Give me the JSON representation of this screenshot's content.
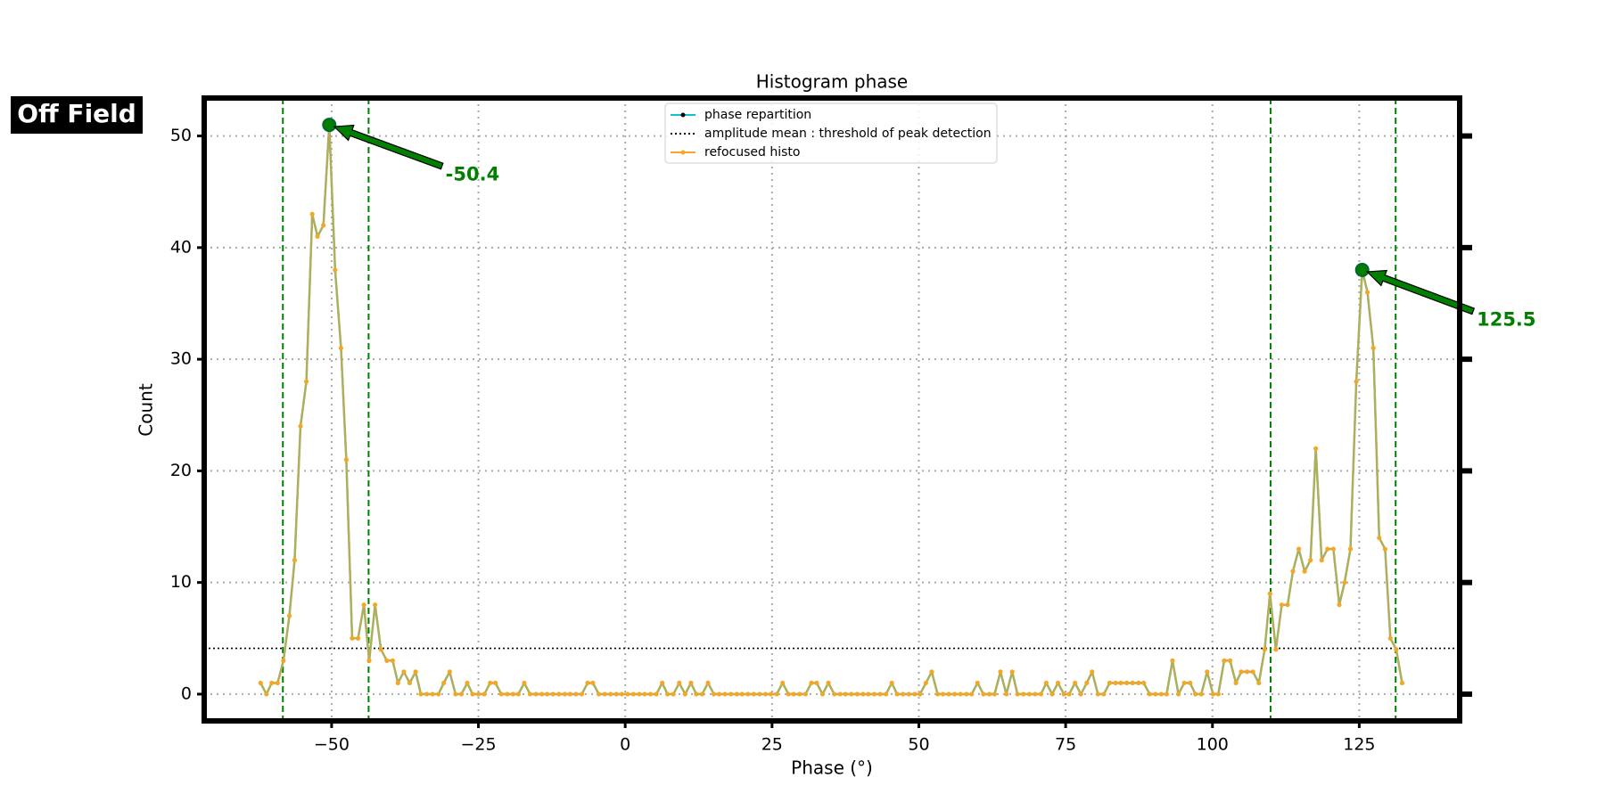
{
  "badge": "Off Field",
  "chart_data": {
    "type": "line",
    "title": "Histogram phase",
    "x_label": "Phase (°)",
    "y_label": "Count",
    "xlim": [
      -71.7,
      142.1
    ],
    "ylim": [
      -2.4,
      53.4
    ],
    "xticks": [
      {
        "value": -50,
        "label": "−50"
      },
      {
        "value": -25,
        "label": "−25"
      },
      0,
      25,
      50,
      75,
      100,
      125
    ],
    "yticks": [
      0,
      10,
      20,
      30,
      40,
      50
    ],
    "grid": true,
    "legend": "upper center",
    "x": [
      -62.1,
      -61.1,
      -60.2,
      -59.2,
      -58.2,
      -57.2,
      -56.3,
      -55.3,
      -54.3,
      -53.3,
      -52.4,
      -51.4,
      -50.4,
      -49.4,
      -48.4,
      -47.5,
      -46.5,
      -45.5,
      -44.5,
      -43.6,
      -42.6,
      -41.6,
      -40.6,
      -39.6,
      -38.7,
      -37.7,
      -36.7,
      -35.7,
      -34.8,
      -33.8,
      -32.8,
      -31.8,
      -30.9,
      -29.9,
      -28.9,
      -27.9,
      -26.9,
      -26.0,
      -25.0,
      -24.0,
      -23.0,
      -22.1,
      -21.1,
      -20.1,
      -19.1,
      -18.2,
      -17.2,
      -16.2,
      -15.2,
      -14.2,
      -13.3,
      -12.3,
      -11.3,
      -10.3,
      -9.4,
      -8.4,
      -7.4,
      -6.4,
      -5.5,
      -4.5,
      -3.5,
      -2.5,
      -1.5,
      -0.6,
      0.4,
      1.4,
      2.4,
      3.3,
      4.3,
      5.3,
      6.3,
      7.2,
      8.2,
      9.2,
      10.2,
      11.2,
      12.1,
      13.1,
      14.1,
      15.1,
      16.0,
      17.0,
      18.0,
      19.0,
      19.9,
      20.9,
      21.9,
      22.9,
      23.9,
      24.8,
      25.8,
      26.8,
      27.8,
      28.7,
      29.7,
      30.7,
      31.7,
      32.6,
      33.6,
      34.6,
      35.6,
      36.6,
      37.5,
      38.5,
      39.5,
      40.5,
      41.4,
      42.4,
      43.4,
      44.4,
      45.4,
      46.3,
      47.3,
      48.3,
      49.3,
      50.2,
      51.2,
      52.2,
      53.2,
      54.1,
      55.1,
      56.1,
      57.1,
      58.1,
      59.0,
      60.0,
      61.0,
      62.0,
      62.9,
      63.9,
      64.9,
      65.9,
      66.8,
      67.8,
      68.8,
      69.8,
      70.8,
      71.7,
      72.7,
      73.7,
      74.7,
      75.6,
      76.6,
      77.6,
      78.6,
      79.5,
      80.5,
      81.5,
      82.5,
      83.5,
      84.4,
      85.4,
      86.4,
      87.4,
      88.3,
      89.3,
      90.3,
      91.3,
      92.2,
      93.2,
      94.2,
      95.2,
      96.2,
      97.1,
      98.1,
      99.1,
      100.1,
      101.0,
      102.0,
      103.0,
      104.0,
      104.9,
      105.9,
      106.9,
      107.9,
      108.9,
      109.8,
      110.8,
      111.8,
      112.8,
      113.7,
      114.7,
      115.7,
      116.7,
      117.6,
      118.6,
      119.6,
      120.6,
      121.6,
      122.5,
      123.5,
      124.5,
      125.5,
      126.4,
      127.4,
      128.4,
      129.4,
      130.3,
      131.3,
      132.3
    ],
    "series": [
      {
        "name": "phase repartition",
        "color": "#17becf",
        "marker_color": "#000000",
        "values": [
          1,
          0,
          1,
          1,
          3,
          7,
          12,
          24,
          28,
          43,
          41,
          42,
          51,
          38,
          31,
          21,
          5,
          5,
          8,
          3,
          8,
          4,
          3,
          3,
          1,
          2,
          1,
          2,
          0,
          0,
          0,
          0,
          1,
          2,
          0,
          0,
          1,
          0,
          0,
          0,
          1,
          1,
          0,
          0,
          0,
          0,
          1,
          0,
          0,
          0,
          0,
          0,
          0,
          0,
          0,
          0,
          0,
          1,
          1,
          0,
          0,
          0,
          0,
          0,
          0,
          0,
          0,
          0,
          0,
          0,
          1,
          0,
          0,
          1,
          0,
          1,
          0,
          0,
          1,
          0,
          0,
          0,
          0,
          0,
          0,
          0,
          0,
          0,
          0,
          0,
          0,
          1,
          0,
          0,
          0,
          0,
          1,
          1,
          0,
          1,
          0,
          0,
          0,
          0,
          0,
          0,
          0,
          0,
          0,
          0,
          1,
          0,
          0,
          0,
          0,
          0,
          1,
          2,
          0,
          0,
          0,
          0,
          0,
          0,
          0,
          1,
          0,
          0,
          0,
          2,
          0,
          2,
          0,
          0,
          0,
          0,
          0,
          1,
          0,
          1,
          0,
          0,
          1,
          0,
          1,
          2,
          0,
          0,
          1,
          1,
          1,
          1,
          1,
          1,
          1,
          0,
          0,
          0,
          0,
          3,
          0,
          1,
          1,
          0,
          0,
          2,
          0,
          0,
          3,
          3,
          1,
          2,
          2,
          2,
          1,
          4,
          9,
          4,
          8,
          8,
          11,
          13,
          11,
          12,
          22,
          12,
          13,
          13,
          8,
          10,
          13,
          28,
          38,
          36,
          31,
          14,
          13,
          5,
          4,
          1
        ]
      },
      {
        "name": "refocused histo",
        "color": "#f5a623",
        "marker_color": "#f5a623",
        "values": [
          1,
          0,
          1,
          1,
          3,
          7,
          12,
          24,
          28,
          43,
          41,
          42,
          51,
          38,
          31,
          21,
          5,
          5,
          8,
          3,
          8,
          4,
          3,
          3,
          1,
          2,
          1,
          2,
          0,
          0,
          0,
          0,
          1,
          2,
          0,
          0,
          1,
          0,
          0,
          0,
          1,
          1,
          0,
          0,
          0,
          0,
          1,
          0,
          0,
          0,
          0,
          0,
          0,
          0,
          0,
          0,
          0,
          1,
          1,
          0,
          0,
          0,
          0,
          0,
          0,
          0,
          0,
          0,
          0,
          0,
          1,
          0,
          0,
          1,
          0,
          1,
          0,
          0,
          1,
          0,
          0,
          0,
          0,
          0,
          0,
          0,
          0,
          0,
          0,
          0,
          0,
          1,
          0,
          0,
          0,
          0,
          1,
          1,
          0,
          1,
          0,
          0,
          0,
          0,
          0,
          0,
          0,
          0,
          0,
          0,
          1,
          0,
          0,
          0,
          0,
          0,
          1,
          2,
          0,
          0,
          0,
          0,
          0,
          0,
          0,
          1,
          0,
          0,
          0,
          2,
          0,
          2,
          0,
          0,
          0,
          0,
          0,
          1,
          0,
          1,
          0,
          0,
          1,
          0,
          1,
          2,
          0,
          0,
          1,
          1,
          1,
          1,
          1,
          1,
          1,
          0,
          0,
          0,
          0,
          3,
          0,
          1,
          1,
          0,
          0,
          2,
          0,
          0,
          3,
          3,
          1,
          2,
          2,
          2,
          1,
          4,
          9,
          4,
          8,
          8,
          11,
          13,
          11,
          12,
          22,
          12,
          13,
          13,
          8,
          10,
          13,
          28,
          38,
          36,
          31,
          14,
          13,
          5,
          4,
          1
        ]
      }
    ],
    "threshold": {
      "name": "amplitude mean : threshold of peak detection",
      "value": 4.1,
      "color": "#000000"
    },
    "vlines": {
      "color": "#007f00",
      "values": [
        -58.3,
        -43.7,
        109.9,
        131.2
      ]
    },
    "annotations": [
      {
        "text": "-50.4",
        "x": -50.4,
        "y": 51,
        "text_x": -30.6,
        "text_y": 46.5,
        "color": "#007f00"
      },
      {
        "text": "125.5",
        "x": 125.5,
        "y": 38,
        "text_x": 145.0,
        "text_y": 33.5,
        "color": "#007f00"
      }
    ]
  }
}
